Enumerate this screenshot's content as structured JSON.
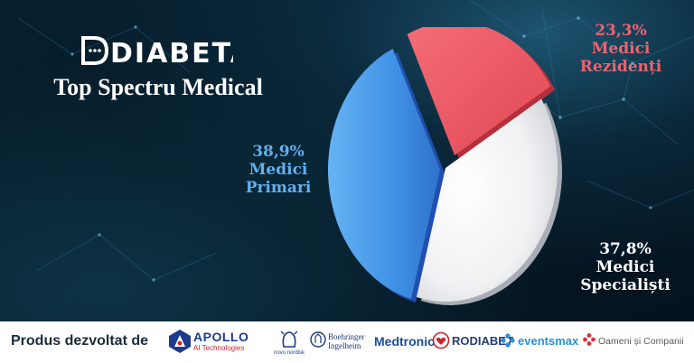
{
  "brand": {
    "logo_text": "DIABETA",
    "title": "Top Spectru Medical"
  },
  "chart_data": {
    "type": "pie",
    "title": "Top Spectru Medical",
    "slices": [
      {
        "pct_label": "38,9%",
        "name_line1": "Medici",
        "name_line2": "Primari",
        "value": 38.9,
        "color": "#3f91e6"
      },
      {
        "pct_label": "23,3%",
        "name_line1": "Medici",
        "name_line2": "Rezidenți",
        "value": 23.3,
        "color": "#ef5964"
      },
      {
        "pct_label": "37,8%",
        "name_line1": "Medici",
        "name_line2": "Specialiști",
        "value": 37.8,
        "color": "#efefef"
      }
    ]
  },
  "footer": {
    "produs_label": "Produs dezvoltat de",
    "apollo_name": "APOLLO",
    "apollo_sub": "AI Technologies",
    "partners": {
      "novo": "novo nordisk",
      "bi_line1": "Boehringer",
      "bi_line2": "Ingelheim",
      "medtronic": "Medtronic",
      "rodiabet": "RODIABET",
      "events": "eventsmax",
      "oameni": "Oameni și Companii"
    }
  },
  "colors": {
    "background": "#061a27",
    "footer": "#ffffff",
    "primari": "#5fb0f0",
    "rezidenti": "#f2626d"
  }
}
